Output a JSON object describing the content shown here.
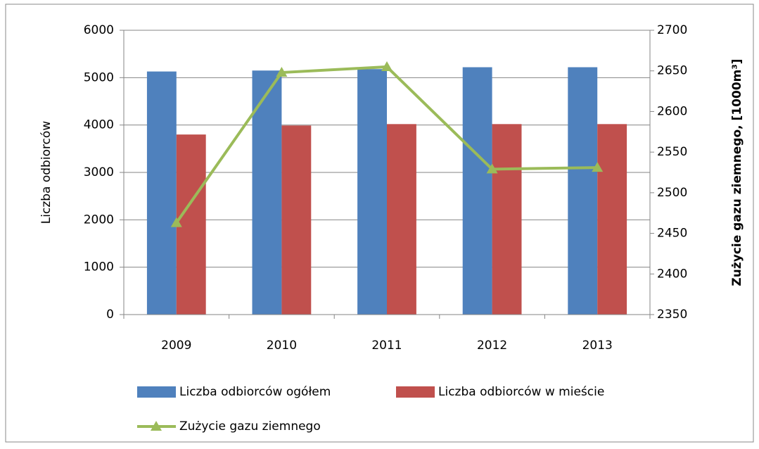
{
  "chart_data": {
    "type": "bar",
    "categories": [
      "2009",
      "2010",
      "2011",
      "2012",
      "2013"
    ],
    "series": [
      {
        "name": "Liczba odbiorców ogółem",
        "color": "#4f81bd",
        "values": [
          5130,
          5150,
          5180,
          5220,
          5220
        ]
      },
      {
        "name": "Liczba odbiorców w mieście",
        "color": "#c0504d",
        "values": [
          3800,
          3990,
          4020,
          4020,
          4020
        ]
      },
      {
        "name": "Zużycie gazu ziemnego",
        "color": "#9bbb59",
        "type": "line",
        "axis": "y2",
        "values": [
          2463,
          2648,
          2655,
          2529,
          2531
        ]
      }
    ],
    "ylabel": "Liczba odbiorców",
    "y2label": "Zużycie gazu ziemnego, [1000m³]",
    "ylim": [
      0,
      6000
    ],
    "yticks": [
      0,
      1000,
      2000,
      3000,
      4000,
      5000,
      6000
    ],
    "y2lim": [
      2350,
      2700
    ],
    "y2ticks": [
      2350,
      2400,
      2450,
      2500,
      2550,
      2600,
      2650,
      2700
    ],
    "grid": true
  }
}
